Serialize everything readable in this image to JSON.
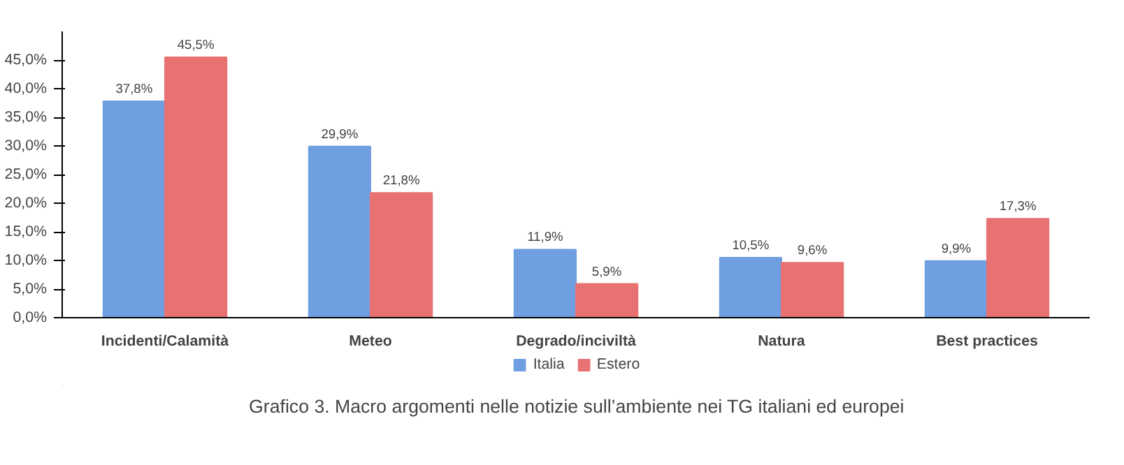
{
  "chart_data": {
    "type": "bar",
    "title": "Grafico 3. Macro argomenti nelle notizie sull’ambiente nei TG italiani ed europei",
    "categories": [
      "Incidenti/Calamità",
      "Meteo",
      "Degrado/inciviltà",
      "Natura",
      "Best practices"
    ],
    "series": [
      {
        "name": "Italia",
        "color": "#6f9fe0",
        "values": [
          37.8,
          29.9,
          11.9,
          10.5,
          9.9
        ],
        "value_labels": [
          "37,8%",
          "29,9%",
          "11,9%",
          "10,5%",
          "9,9%"
        ]
      },
      {
        "name": "Estero",
        "color": "#e87272",
        "values": [
          45.5,
          21.8,
          5.9,
          9.6,
          17.3
        ],
        "value_labels": [
          "45,5%",
          "21,8%",
          "5,9%",
          "9,6%",
          "17,3%"
        ]
      }
    ],
    "ylim": [
      0,
      50
    ],
    "yticks": [
      {
        "value": 0,
        "label": "0,0%"
      },
      {
        "value": 5,
        "label": "5,0%"
      },
      {
        "value": 10,
        "label": "10,0%"
      },
      {
        "value": 15,
        "label": "15,0%"
      },
      {
        "value": 20,
        "label": "20,0%"
      },
      {
        "value": 25,
        "label": "25,0%"
      },
      {
        "value": 30,
        "label": "30,0%"
      },
      {
        "value": 35,
        "label": "35,0%"
      },
      {
        "value": 40,
        "label": "40,0%"
      },
      {
        "value": 45,
        "label": "45,0%"
      }
    ],
    "legend": "bottom",
    "grid": false
  }
}
